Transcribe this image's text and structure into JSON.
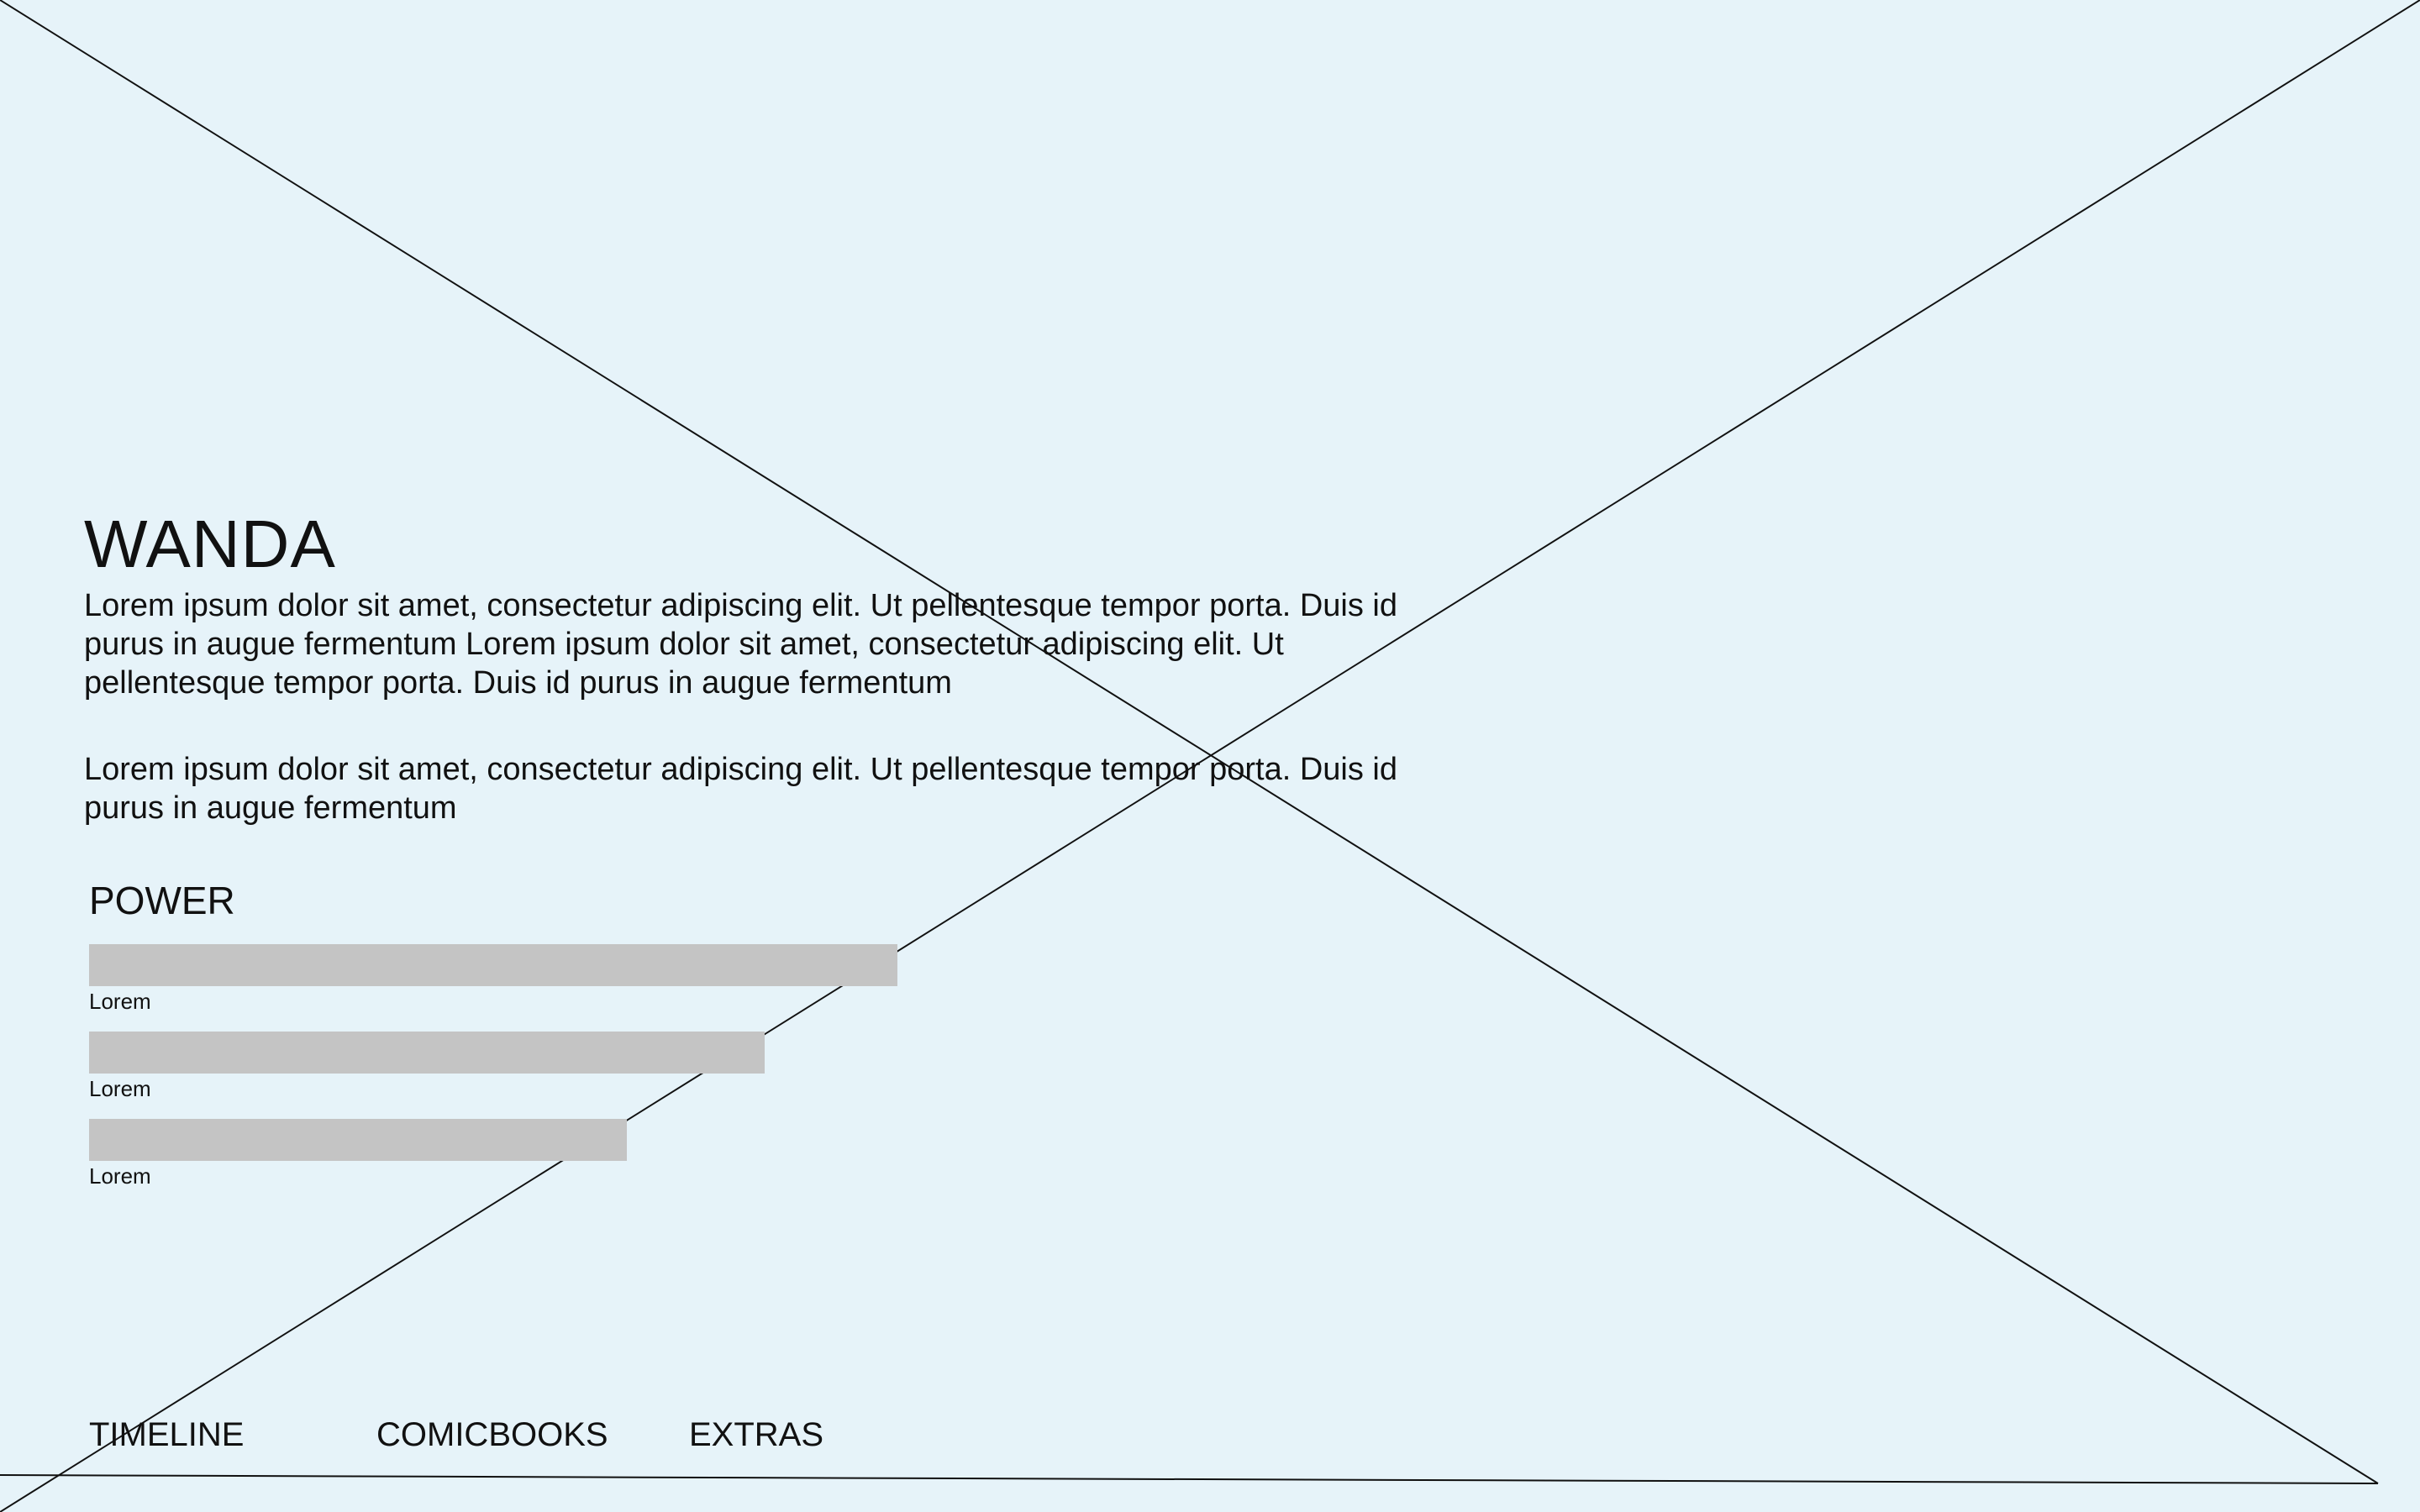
{
  "hero": {
    "title": "WANDA",
    "paragraphs": [
      "Lorem ipsum dolor sit amet, consectetur adipiscing elit. Ut pellentesque tempor porta. Duis id purus in augue fermentum Lorem ipsum dolor sit amet, consectetur adipiscing elit. Ut pellentesque tempor porta. Duis id purus in augue fermentum",
      "Lorem ipsum dolor sit amet, consectetur adipiscing elit. Ut pellentesque tempor porta. Duis id purus in augue fermentum"
    ]
  },
  "power": {
    "title": "POWER",
    "bar_color": "#C4C4C4",
    "items": [
      {
        "label": "Lorem",
        "level": 0.962
      },
      {
        "label": "Lorem",
        "level": 0.804
      },
      {
        "label": "Lorem",
        "level": 0.64
      }
    ]
  },
  "nav": {
    "items": [
      {
        "label": "TIMELINE"
      },
      {
        "label": "COMICBOOKS"
      },
      {
        "label": "EXTRAS"
      }
    ]
  },
  "colors": {
    "background": "#E6F3F9",
    "text": "#111111",
    "lines": "#111111"
  }
}
